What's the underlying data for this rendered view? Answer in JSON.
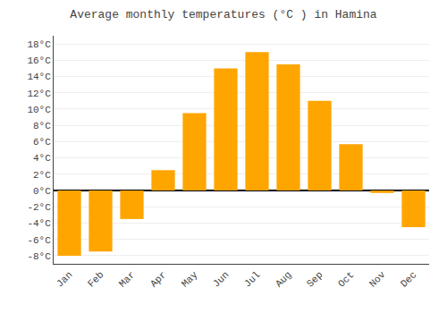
{
  "chart_data": {
    "type": "bar",
    "title": "Average monthly temperatures (°C ) in Hamina",
    "categories": [
      "Jan",
      "Feb",
      "Mar",
      "Apr",
      "May",
      "Jun",
      "Jul",
      "Aug",
      "Sep",
      "Oct",
      "Nov",
      "Dec"
    ],
    "values": [
      -8.0,
      -7.5,
      -3.5,
      2.5,
      9.5,
      15.0,
      17.0,
      15.5,
      11.0,
      5.7,
      -0.3,
      -4.5
    ],
    "color": "#FFA500",
    "ylim": [
      -9,
      19
    ],
    "yticks": [
      {
        "value": -8,
        "label": "-8°C"
      },
      {
        "value": -6,
        "label": "-6°C"
      },
      {
        "value": -4,
        "label": "-4°C"
      },
      {
        "value": -2,
        "label": "-2°C"
      },
      {
        "value": 0,
        "label": "0°C"
      },
      {
        "value": 2,
        "label": "2°C"
      },
      {
        "value": 4,
        "label": "4°C"
      },
      {
        "value": 6,
        "label": "6°C"
      },
      {
        "value": 8,
        "label": "8°C"
      },
      {
        "value": 10,
        "label": "10°C"
      },
      {
        "value": 12,
        "label": "12°C"
      },
      {
        "value": 14,
        "label": "14°C"
      },
      {
        "value": 16,
        "label": "16°C"
      },
      {
        "value": 18,
        "label": "18°C"
      }
    ],
    "grid": true
  }
}
